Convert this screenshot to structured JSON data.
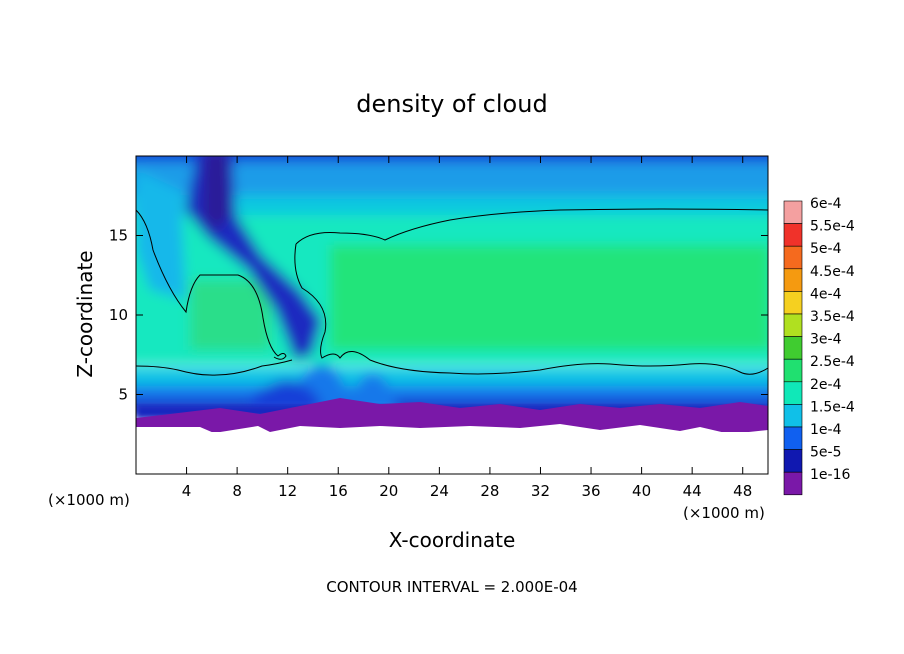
{
  "chart_data": {
    "type": "heatmap",
    "title": "density of cloud",
    "xlabel": "X-coordinate",
    "ylabel": "Z-coordinate",
    "x_unit_left": "(×1000 m)",
    "x_unit_right": "(×1000 m)",
    "footer": "CONTOUR INTERVAL = 2.000E-04",
    "xlim": [
      0,
      50
    ],
    "ylim": [
      0,
      20
    ],
    "x_ticks": [
      4,
      8,
      12,
      16,
      20,
      24,
      28,
      32,
      36,
      40,
      44,
      48
    ],
    "y_ticks": [
      5,
      10,
      15
    ],
    "colorbar": {
      "labels": [
        "6e-4",
        "5.5e-4",
        "5e-4",
        "4.5e-4",
        "4e-4",
        "3.5e-4",
        "3e-4",
        "2.5e-4",
        "2e-4",
        "1.5e-4",
        "1e-4",
        "5e-5",
        "1e-16"
      ],
      "colors": [
        "#f4a0a0",
        "#f0322a",
        "#f56a1e",
        "#f59a10",
        "#f5d020",
        "#b0e020",
        "#40cc30",
        "#20e070",
        "#10e8b8",
        "#10c0e8",
        "#1060f0",
        "#1018b0",
        "#7a18a8"
      ]
    },
    "contour_level": 0.0002,
    "contour_interval": 0.0002,
    "cloud_base_km": 3,
    "peak_value": 0.00026,
    "peak_region": {
      "x_km": [
        16,
        50
      ],
      "z_km": [
        8,
        13
      ]
    },
    "grid": false
  }
}
